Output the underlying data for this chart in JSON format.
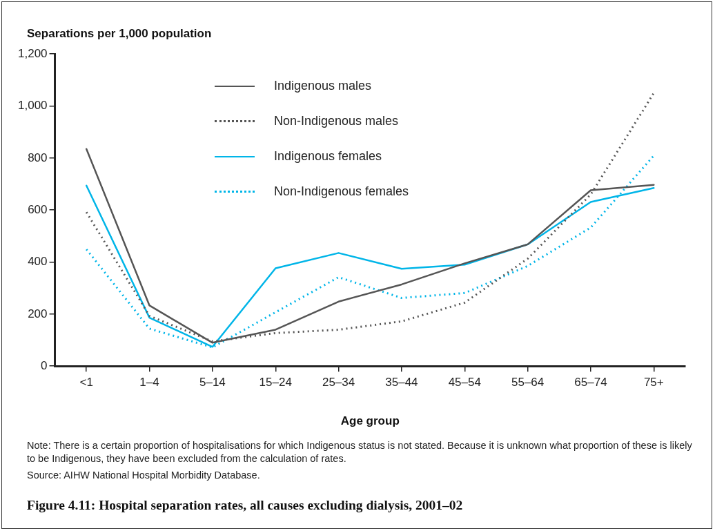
{
  "chart_data": {
    "type": "line",
    "ylabel": "Separations per 1,000 population",
    "xlabel": "Age group",
    "title": "Figure 4.11: Hospital separation rates, all causes excluding dialysis, 2001–02",
    "annotations": [
      "Note: There is a certain proportion of hospitalisations for which Indigenous status is not stated. Because it is unknown what proportion of these is likely to be Indigenous, they have been excluded from the calculation of rates.",
      "Source: AIHW National Hospital Morbidity Database."
    ],
    "categories": [
      "<1",
      "1–4",
      "5–14",
      "15–24",
      "25–34",
      "35–44",
      "45–54",
      "55–64",
      "65–74",
      "75+"
    ],
    "series": [
      {
        "name": "Indigenous males",
        "color": "#555555",
        "line_style": "solid",
        "values": [
          835,
          233,
          90,
          140,
          248,
          314,
          395,
          468,
          676,
          697
        ]
      },
      {
        "name": "Non-Indigenous males",
        "color": "#555555",
        "line_style": "dotted",
        "values": [
          592,
          193,
          95,
          127,
          140,
          172,
          244,
          413,
          660,
          1050
        ]
      },
      {
        "name": "Indigenous females",
        "color": "#00b5e8",
        "line_style": "solid",
        "values": [
          694,
          186,
          74,
          376,
          435,
          374,
          390,
          468,
          631,
          685
        ]
      },
      {
        "name": "Non-Indigenous females",
        "color": "#00b5e8",
        "line_style": "dotted",
        "values": [
          449,
          144,
          72,
          207,
          342,
          262,
          281,
          385,
          533,
          809
        ]
      }
    ],
    "ylim": [
      0,
      1200
    ],
    "yticks": [
      0,
      {
        "value": 200,
        "label": "200"
      },
      {
        "value": 400,
        "label": "400"
      },
      {
        "value": 600,
        "label": "600"
      },
      {
        "value": 800,
        "label": "800"
      },
      {
        "value": 1000,
        "label": "1,000"
      },
      {
        "value": 1200,
        "label": "1,200"
      }
    ],
    "grid": false,
    "legend": "top",
    "marker": "none"
  }
}
